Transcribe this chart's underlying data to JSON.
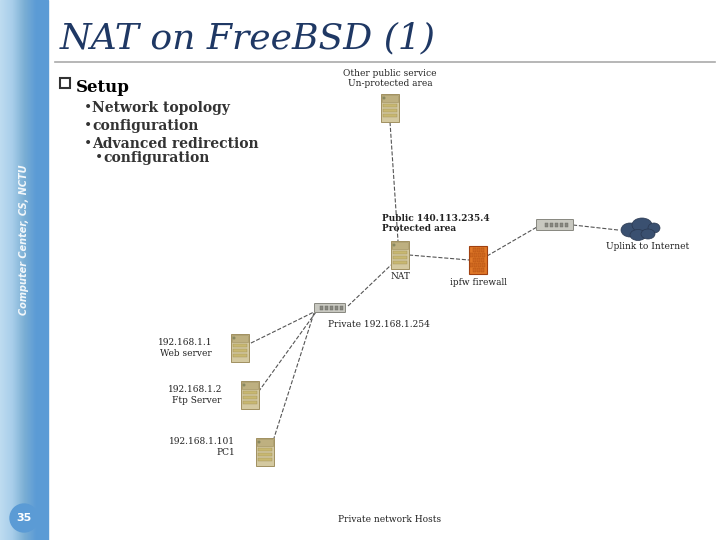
{
  "title": "NAT on FreeBSD (1)",
  "title_color": "#1F3864",
  "title_fontsize": 26,
  "sidebar_text": "Computer Center, CS, NCTU",
  "slide_bg": "#FFFFFF",
  "page_number": "35",
  "bullet_header": "Setup",
  "bullets": [
    "Network topology",
    "configuration",
    "Advanced redirection\n    configuration"
  ],
  "diagram_labels": {
    "other_public": "Other public service\nUn-protected area",
    "public_nat": "Public 140.113.235.4\nProtected area",
    "nat_label": "NAT",
    "ipfw": "ipfw firewall",
    "private": "Private 192.168.1.254",
    "uplink": "Uplink to Internet",
    "web": "192.168.1.1\nWeb server",
    "ftp": "192.168.1.2\nFtp Server",
    "pc1": "192.168.1.101\nPC1",
    "private_network": "Private network Hosts"
  },
  "header_line_color": "#AAAAAA",
  "text_color": "#333333"
}
